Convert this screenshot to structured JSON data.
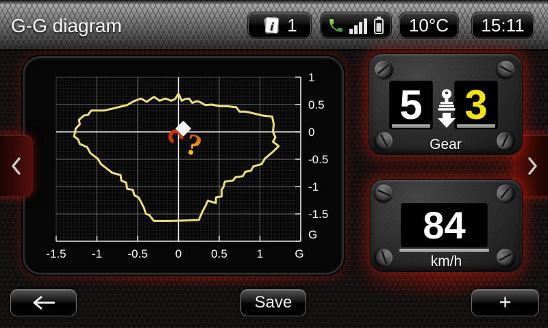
{
  "titlebar": {
    "title": "G-G diagram",
    "info_count": "1",
    "temperature": "10°C",
    "clock": "15:11"
  },
  "icons": {
    "info": "stacked-notes-info",
    "phone": "phone-handset",
    "signal": "signal-strength-bars",
    "battery": "battery-level",
    "prev": "chevron-left",
    "next": "chevron-right",
    "shift": "gearshift-down-arrow",
    "back": "arrow-left",
    "marker": "question-mark-placeholder"
  },
  "gear_panel": {
    "label": "Gear",
    "current_gear": "5",
    "suggested_gear": "3",
    "current_color": "#ffffff",
    "suggested_color": "#f0e312"
  },
  "speed_panel": {
    "value": "84",
    "unit": "km/h"
  },
  "bottom_bar": {
    "save_label": "Save",
    "add_label": "+"
  },
  "chart_data": {
    "type": "line",
    "title": "G-G diagram",
    "description": "Lateral vs longitudinal acceleration envelope trace with current-position marker",
    "xlim": [
      -1.5,
      1.5
    ],
    "ylim": [
      -2,
      1
    ],
    "x_ticks": [
      -1.5,
      -1,
      -0.5,
      0,
      0.5,
      1
    ],
    "x_tick_labels": [
      "-1.5",
      "-1",
      "-0.5",
      "0",
      "0.5",
      "1"
    ],
    "x_axis_unit": "G",
    "y_ticks": [
      1,
      0.5,
      0,
      -0.5,
      -1,
      -1.5
    ],
    "y_tick_labels": [
      "1",
      "0.5",
      "0",
      "-0.5",
      "-1",
      "-1.5"
    ],
    "y_axis_unit": "G",
    "grid": {
      "major_step": 0.5,
      "minor": true
    },
    "legend": "none",
    "trace_color": "#ecdf7f",
    "trace": [
      [
        0.0,
        0.7
      ],
      [
        0.04,
        0.57
      ],
      [
        0.08,
        0.6
      ],
      [
        0.13,
        0.61
      ],
      [
        0.17,
        0.53
      ],
      [
        0.22,
        0.56
      ],
      [
        0.26,
        0.55
      ],
      [
        0.33,
        0.49
      ],
      [
        0.41,
        0.5
      ],
      [
        0.5,
        0.47
      ],
      [
        0.6,
        0.47
      ],
      [
        0.71,
        0.45
      ],
      [
        0.75,
        0.37
      ],
      [
        0.82,
        0.37
      ],
      [
        0.89,
        0.35
      ],
      [
        1.03,
        0.3
      ],
      [
        1.15,
        0.28
      ],
      [
        1.17,
        0.14
      ],
      [
        1.16,
        0.0
      ],
      [
        1.19,
        -0.1
      ],
      [
        1.16,
        -0.18
      ],
      [
        1.23,
        -0.26
      ],
      [
        1.17,
        -0.35
      ],
      [
        1.06,
        -0.49
      ],
      [
        1.02,
        -0.59
      ],
      [
        0.92,
        -0.63
      ],
      [
        0.89,
        -0.71
      ],
      [
        0.82,
        -0.73
      ],
      [
        0.79,
        -0.81
      ],
      [
        0.7,
        -0.83
      ],
      [
        0.67,
        -0.89
      ],
      [
        0.57,
        -0.91
      ],
      [
        0.55,
        -1.02
      ],
      [
        0.53,
        -1.05
      ],
      [
        0.53,
        -1.18
      ],
      [
        0.46,
        -1.2
      ],
      [
        0.46,
        -1.3
      ],
      [
        0.36,
        -1.26
      ],
      [
        0.33,
        -1.36
      ],
      [
        0.3,
        -1.44
      ],
      [
        0.25,
        -1.61
      ],
      [
        0.1,
        -1.62
      ],
      [
        -0.1,
        -1.63
      ],
      [
        -0.3,
        -1.63
      ],
      [
        -0.36,
        -1.52
      ],
      [
        -0.4,
        -1.5
      ],
      [
        -0.42,
        -1.4
      ],
      [
        -0.46,
        -1.28
      ],
      [
        -0.49,
        -1.2
      ],
      [
        -0.54,
        -1.16
      ],
      [
        -0.56,
        -1.06
      ],
      [
        -0.63,
        -1.04
      ],
      [
        -0.64,
        -0.93
      ],
      [
        -0.7,
        -0.89
      ],
      [
        -0.71,
        -0.79
      ],
      [
        -0.81,
        -0.75
      ],
      [
        -0.95,
        -0.59
      ],
      [
        -0.99,
        -0.49
      ],
      [
        -1.08,
        -0.39
      ],
      [
        -1.12,
        -0.28
      ],
      [
        -1.21,
        -0.22
      ],
      [
        -1.23,
        -0.14
      ],
      [
        -1.28,
        -0.08
      ],
      [
        -1.26,
        0.06
      ],
      [
        -1.21,
        0.14
      ],
      [
        -1.22,
        0.22
      ],
      [
        -1.16,
        0.3
      ],
      [
        -1.11,
        0.31
      ],
      [
        -1.07,
        0.39
      ],
      [
        -0.91,
        0.39
      ],
      [
        -0.74,
        0.45
      ],
      [
        -0.63,
        0.49
      ],
      [
        -0.55,
        0.56
      ],
      [
        -0.46,
        0.61
      ],
      [
        -0.39,
        0.55
      ],
      [
        -0.3,
        0.64
      ],
      [
        -0.23,
        0.57
      ],
      [
        -0.16,
        0.61
      ],
      [
        -0.09,
        0.57
      ],
      [
        -0.04,
        0.6
      ]
    ],
    "marker": {
      "x": 0.06,
      "y": 0.06,
      "glyph": "?",
      "name": "current-g-marker"
    }
  }
}
